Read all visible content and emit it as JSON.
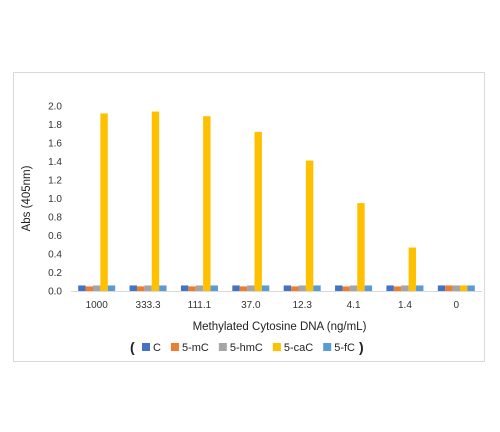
{
  "chart_data": {
    "type": "bar",
    "xlabel": "Methylated Cytosine DNA (ng/mL)",
    "ylabel": "Abs (405nm)",
    "ylim": [
      0,
      2.0
    ],
    "yticks": [
      "0.0",
      "0.2",
      "0.4",
      "0.6",
      "0.8",
      "1.0",
      "1.2",
      "1.4",
      "1.6",
      "1.8",
      "2.0"
    ],
    "grid": false,
    "legend_position": "bottom",
    "legend_open": "(",
    "legend_close": ")",
    "categories": [
      "1000",
      "333.3",
      "111.1",
      "37.0",
      "12.3",
      "4.1",
      "1.4",
      "0"
    ],
    "series": [
      {
        "name": "C",
        "color": "#4472c4",
        "values": [
          0.06,
          0.06,
          0.06,
          0.06,
          0.06,
          0.06,
          0.06,
          0.06
        ]
      },
      {
        "name": "5-mC",
        "color": "#ed7d31",
        "values": [
          0.05,
          0.05,
          0.05,
          0.05,
          0.05,
          0.05,
          0.05,
          0.06
        ]
      },
      {
        "name": "5-hmC",
        "color": "#a5a5a5",
        "values": [
          0.06,
          0.06,
          0.06,
          0.06,
          0.06,
          0.06,
          0.06,
          0.06
        ]
      },
      {
        "name": "5-caC",
        "color": "#ffc000",
        "values": [
          1.92,
          1.94,
          1.89,
          1.72,
          1.41,
          0.95,
          0.47,
          0.06
        ]
      },
      {
        "name": "5-fC",
        "color": "#5b9bd5",
        "values": [
          0.06,
          0.06,
          0.06,
          0.06,
          0.06,
          0.06,
          0.06,
          0.06
        ]
      }
    ]
  }
}
